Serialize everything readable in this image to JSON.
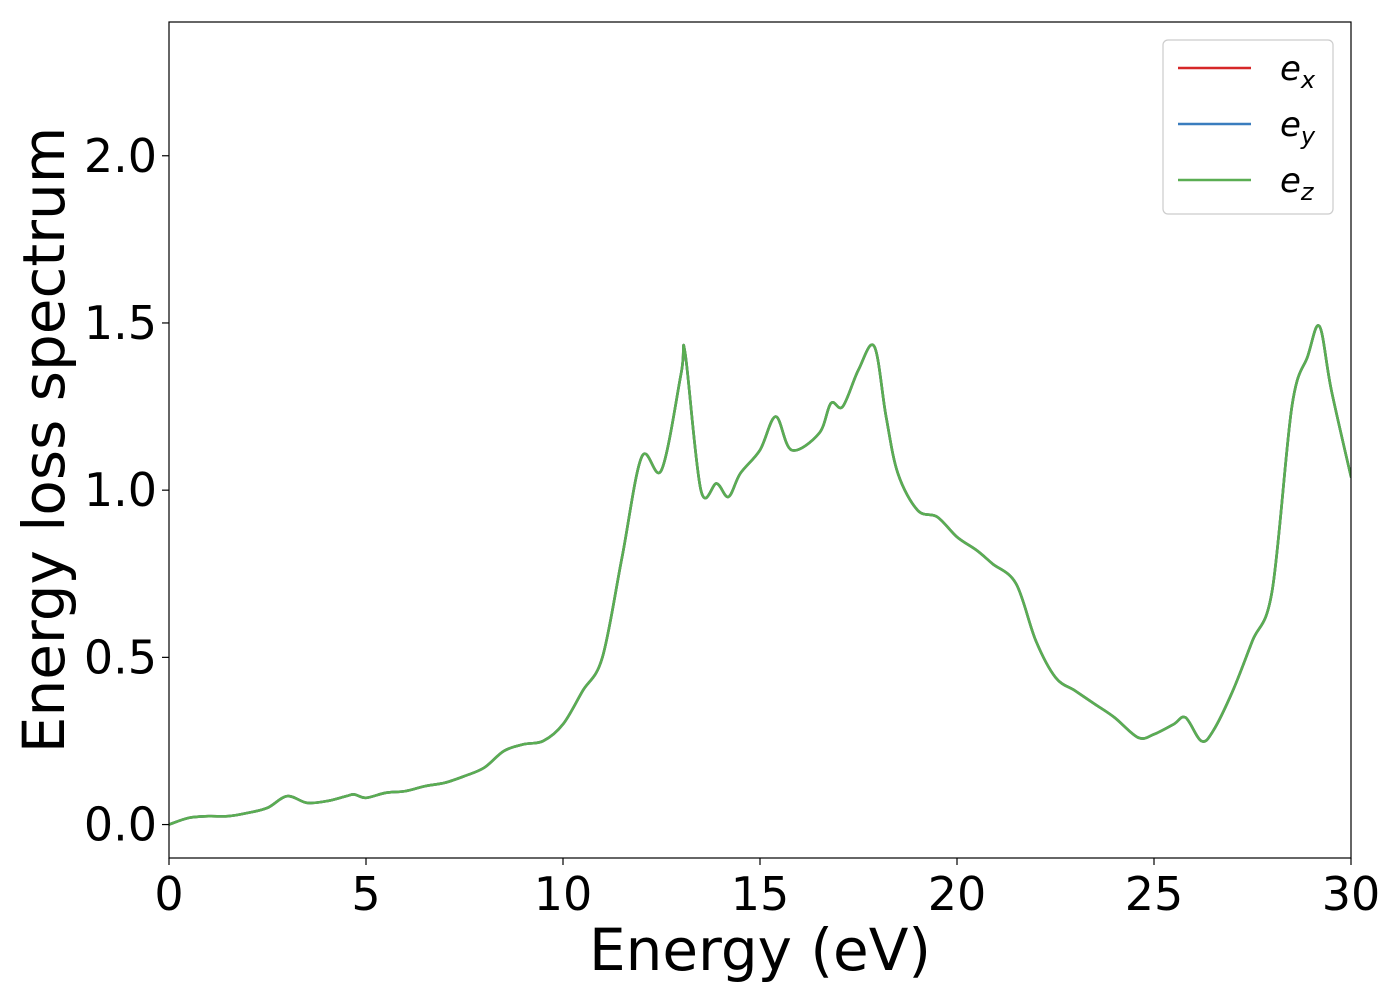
{
  "chart_data": {
    "type": "line",
    "xlabel": "Energy (eV)",
    "ylabel": "Energy loss spectrum",
    "xlim": [
      0,
      30
    ],
    "ylim": [
      -0.1,
      2.4
    ],
    "xticks": [
      0,
      5,
      10,
      15,
      20,
      25,
      30
    ],
    "xtick_labels": [
      "0",
      "5",
      "10",
      "15",
      "20",
      "25",
      "30"
    ],
    "yticks": [
      0.0,
      0.5,
      1.0,
      1.5,
      2.0
    ],
    "ytick_labels": [
      "0.0",
      "0.5",
      "1.0",
      "1.5",
      "2.0"
    ],
    "grid": false,
    "legend_position": "top-right",
    "x": [
      0,
      0.5,
      1,
      1.5,
      2,
      2.5,
      3,
      3.5,
      4,
      4.5,
      4.7,
      5,
      5.5,
      6,
      6.5,
      7,
      7.5,
      8,
      8.5,
      9,
      9.5,
      10,
      10.5,
      11,
      11.5,
      12,
      12.5,
      13,
      13.1,
      13.5,
      13.9,
      14.2,
      14.5,
      15,
      15.4,
      15.8,
      16.5,
      16.8,
      17.1,
      17.5,
      17.9,
      18.2,
      18.5,
      19,
      19.5,
      20,
      20.5,
      20.9,
      21.5,
      22,
      22.5,
      23,
      23.5,
      24,
      24.6,
      25,
      25.5,
      25.8,
      26.2,
      26.5,
      27,
      27.5,
      28,
      28.5,
      28.9,
      29.2,
      29.5,
      30
    ],
    "series": [
      {
        "name": "e_x",
        "label_base": "e",
        "label_sub": "x",
        "color": "#d62728",
        "values": [
          0.0,
          0.02,
          0.025,
          0.025,
          0.035,
          0.05,
          0.085,
          0.065,
          0.07,
          0.085,
          0.09,
          0.08,
          0.095,
          0.1,
          0.115,
          0.125,
          0.145,
          0.17,
          0.22,
          0.24,
          0.25,
          0.3,
          0.4,
          0.5,
          0.8,
          1.1,
          1.06,
          1.35,
          1.41,
          1.0,
          1.02,
          0.98,
          1.05,
          1.12,
          1.22,
          1.12,
          1.17,
          1.26,
          1.25,
          1.36,
          1.43,
          1.22,
          1.05,
          0.94,
          0.92,
          0.86,
          0.82,
          0.78,
          0.72,
          0.55,
          0.44,
          0.4,
          0.36,
          0.32,
          0.26,
          0.27,
          0.3,
          0.32,
          0.25,
          0.28,
          0.4,
          0.55,
          0.7,
          1.25,
          1.4,
          1.49,
          1.3,
          1.04
        ]
      },
      {
        "name": "e_y",
        "label_base": "e",
        "label_sub": "y",
        "color": "#3a7dbe",
        "values": [
          0.0,
          0.02,
          0.025,
          0.025,
          0.035,
          0.05,
          0.085,
          0.065,
          0.07,
          0.085,
          0.09,
          0.08,
          0.095,
          0.1,
          0.115,
          0.125,
          0.145,
          0.17,
          0.22,
          0.24,
          0.25,
          0.3,
          0.4,
          0.5,
          0.8,
          1.1,
          1.06,
          1.35,
          1.41,
          1.0,
          1.02,
          0.98,
          1.05,
          1.12,
          1.22,
          1.12,
          1.17,
          1.26,
          1.25,
          1.36,
          1.43,
          1.22,
          1.05,
          0.94,
          0.92,
          0.86,
          0.82,
          0.78,
          0.72,
          0.55,
          0.44,
          0.4,
          0.36,
          0.32,
          0.26,
          0.27,
          0.3,
          0.32,
          0.25,
          0.28,
          0.4,
          0.55,
          0.7,
          1.25,
          1.4,
          1.49,
          1.3,
          1.04
        ]
      },
      {
        "name": "e_z",
        "label_base": "e",
        "label_sub": "z",
        "color": "#5aad52",
        "values": [
          0.0,
          0.02,
          0.025,
          0.025,
          0.035,
          0.05,
          0.085,
          0.065,
          0.07,
          0.085,
          0.09,
          0.08,
          0.095,
          0.1,
          0.115,
          0.125,
          0.145,
          0.17,
          0.22,
          0.24,
          0.25,
          0.3,
          0.4,
          0.5,
          0.8,
          1.1,
          1.06,
          1.35,
          1.41,
          1.0,
          1.02,
          0.98,
          1.05,
          1.12,
          1.22,
          1.12,
          1.17,
          1.26,
          1.25,
          1.36,
          1.43,
          1.22,
          1.05,
          0.94,
          0.92,
          0.86,
          0.82,
          0.78,
          0.72,
          0.55,
          0.44,
          0.4,
          0.36,
          0.32,
          0.26,
          0.27,
          0.3,
          0.32,
          0.25,
          0.28,
          0.4,
          0.55,
          0.7,
          1.25,
          1.4,
          1.49,
          1.3,
          1.04
        ]
      }
    ]
  }
}
